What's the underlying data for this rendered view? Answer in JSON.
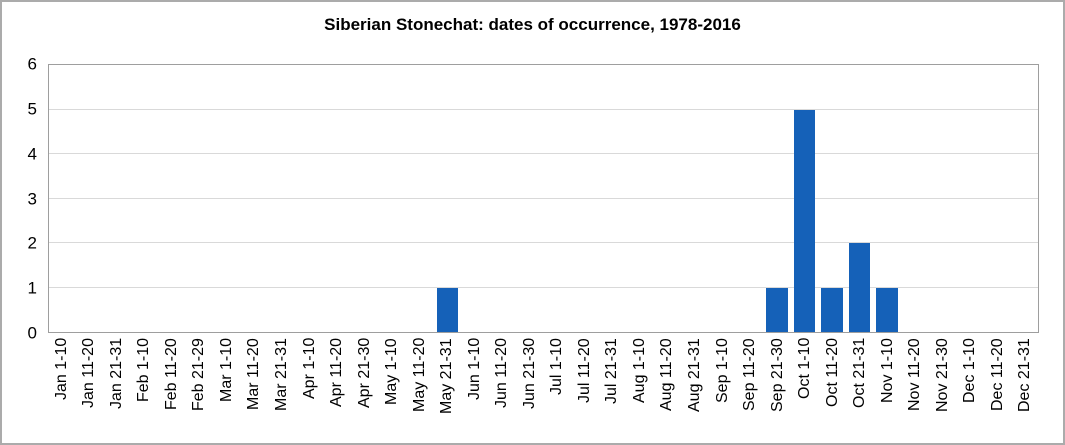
{
  "chart_data": {
    "type": "bar",
    "title": "Siberian Stonechat: dates of occurrence, 1978-2016",
    "categories": [
      "Jan 1-10",
      "Jan 11-20",
      "Jan 21-31",
      "Feb 1-10",
      "Feb 11-20",
      "Feb 21-29",
      "Mar 1-10",
      "Mar 11-20",
      "Mar 21-31",
      "Apr 1-10",
      "Apr 11-20",
      "Apr 21-30",
      "May 1-10",
      "May 11-20",
      "May 21-31",
      "Jun 1-10",
      "Jun 11-20",
      "Jun 21-30",
      "Jul 1-10",
      "Jul 11-20",
      "Jul 21-31",
      "Aug 1-10",
      "Aug 11-20",
      "Aug 21-31",
      "Sep 1-10",
      "Sep 11-20",
      "Sep 21-30",
      "Oct 1-10",
      "Oct 11-20",
      "Oct 21-31",
      "Nov 1-10",
      "Nov 11-20",
      "Nov 21-30",
      "Dec 1-10",
      "Dec 11-20",
      "Dec 21-31"
    ],
    "values": [
      0,
      0,
      0,
      0,
      0,
      0,
      0,
      0,
      0,
      0,
      0,
      0,
      0,
      0,
      1,
      0,
      0,
      0,
      0,
      0,
      0,
      0,
      0,
      0,
      0,
      0,
      1,
      5,
      1,
      2,
      1,
      0,
      0,
      0,
      0,
      0
    ],
    "xlabel": "",
    "ylabel": "",
    "ylim": [
      0,
      6
    ],
    "yticks": [
      0,
      1,
      2,
      3,
      4,
      5,
      6
    ],
    "grid": "horizontal-major",
    "legend_position": "none",
    "x_label_rotation_degrees": 90,
    "colors": {
      "bar": "#1561b8",
      "gridline": "#d9d9d9",
      "plot_border": "#9e9e9e",
      "text": "#000000",
      "background": "#ffffff"
    }
  }
}
